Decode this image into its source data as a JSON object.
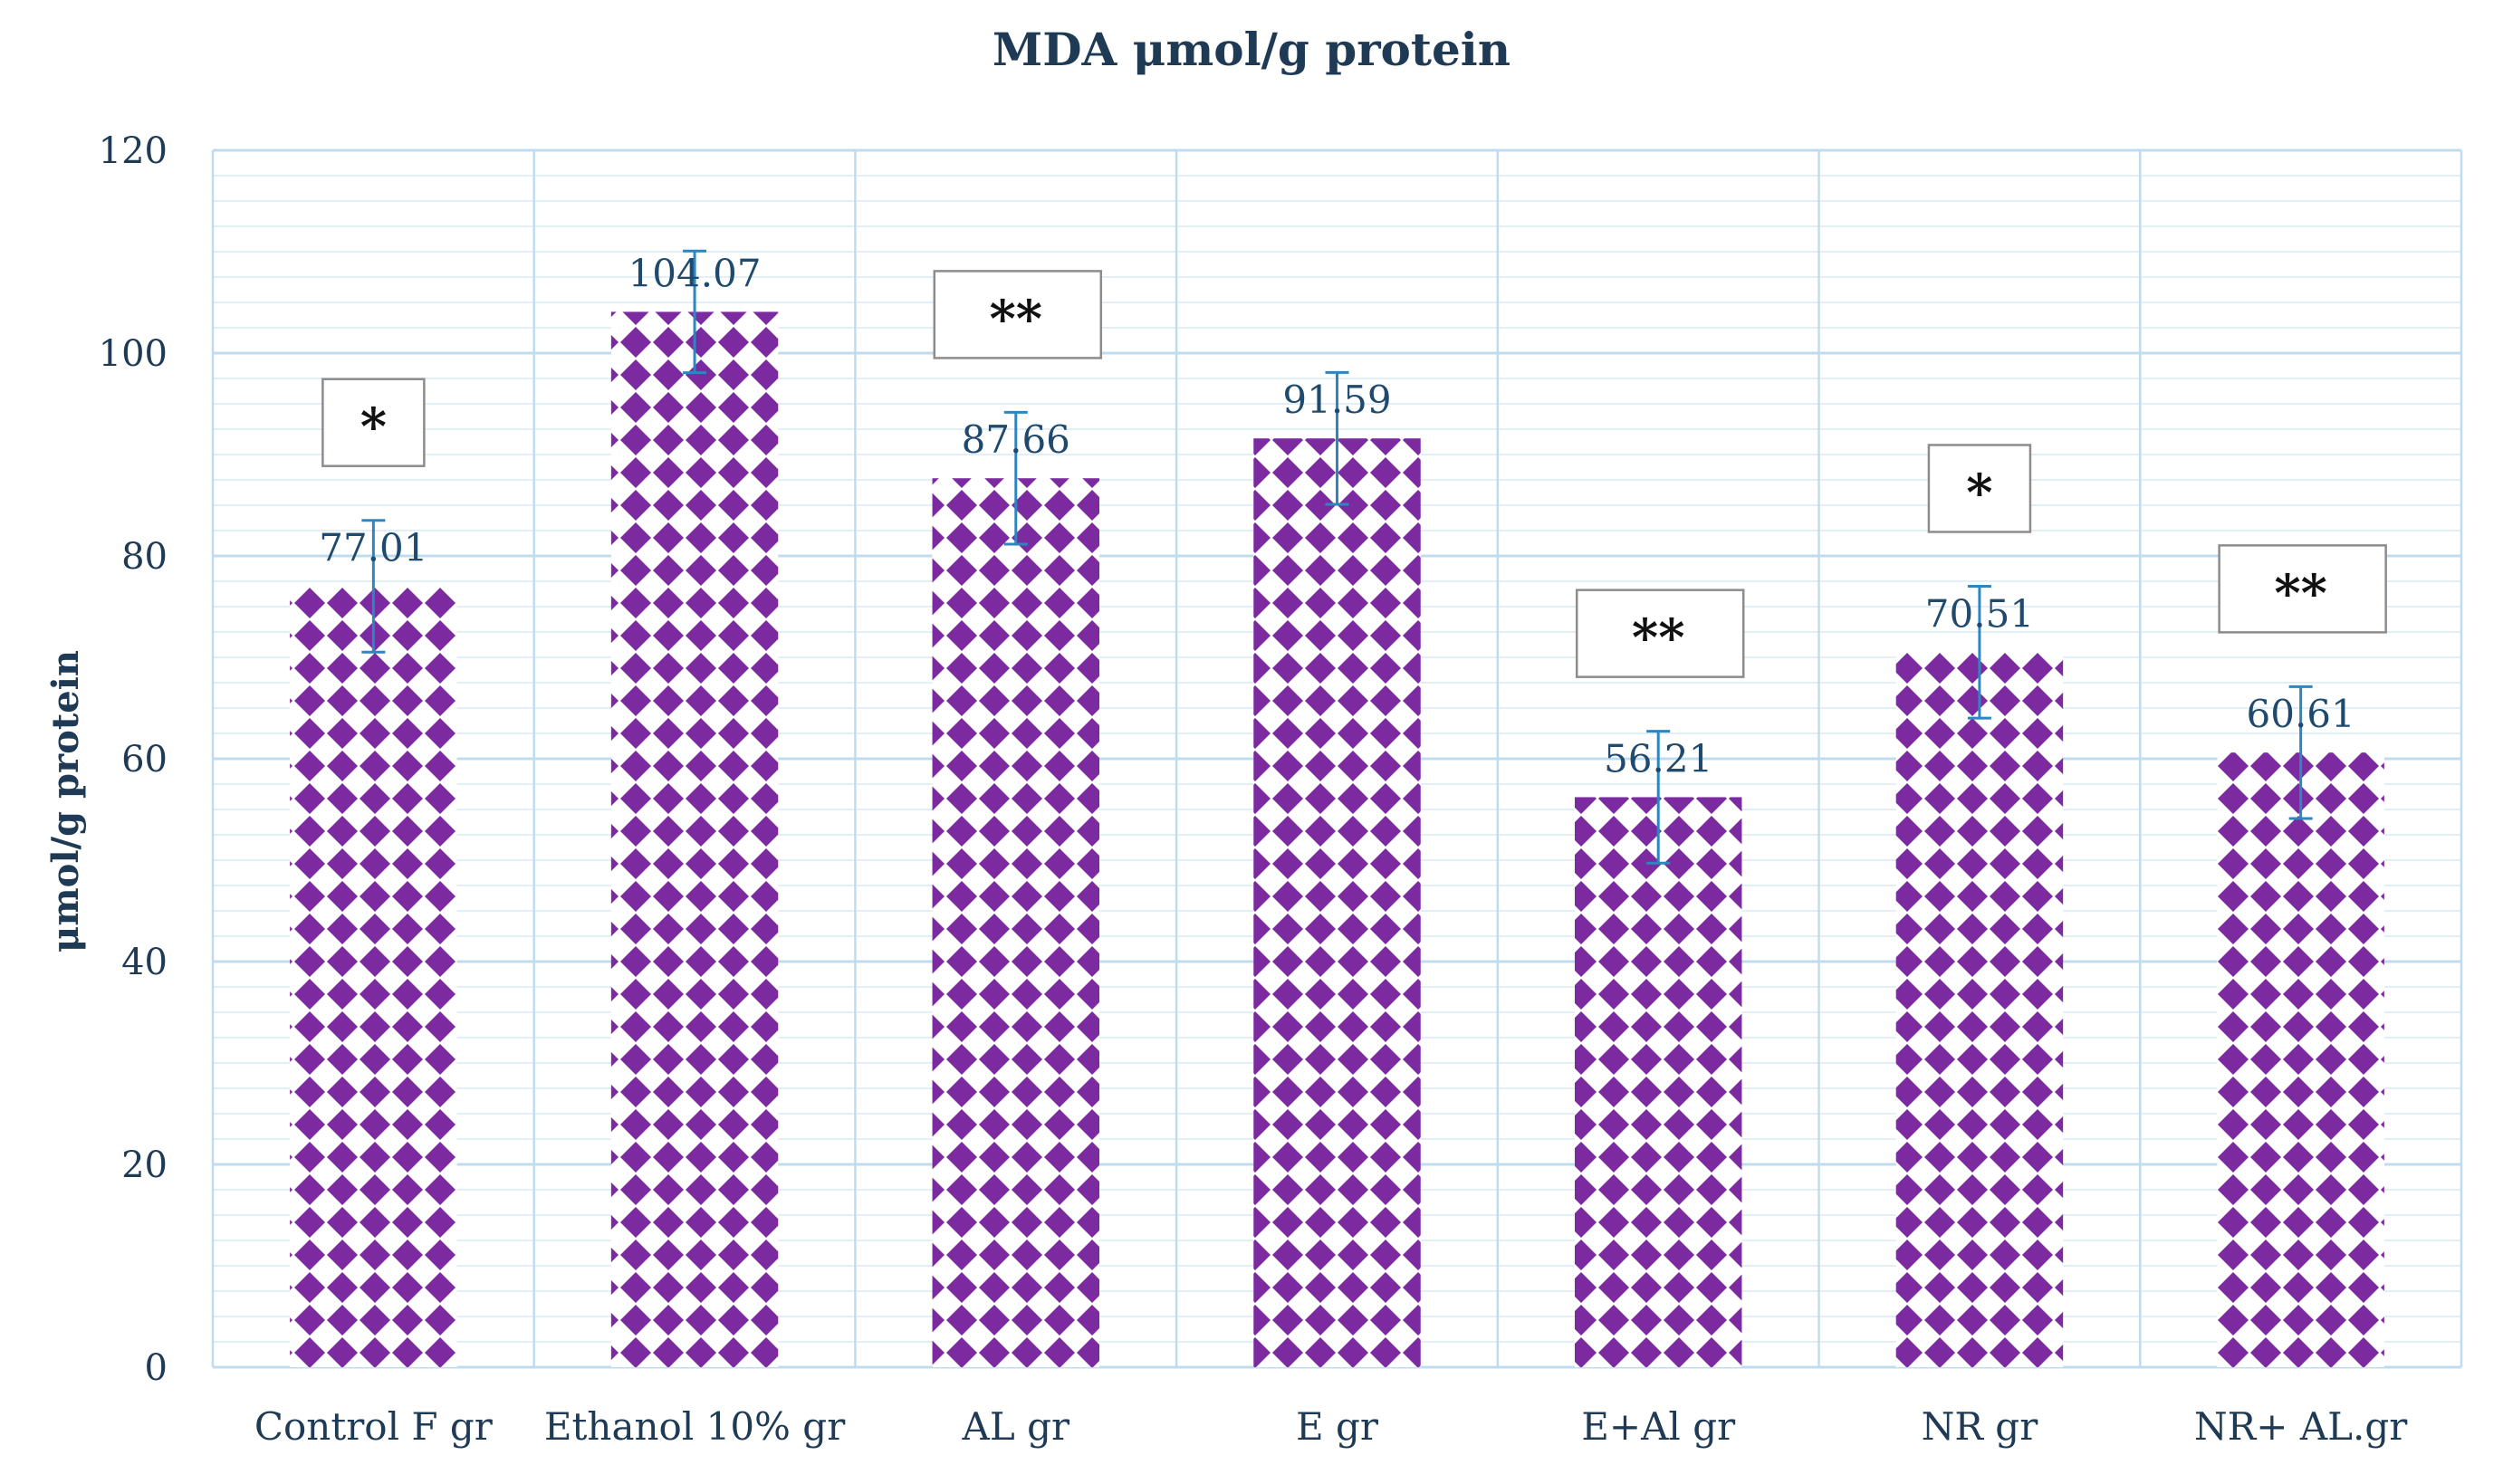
{
  "chart_data": {
    "type": "bar",
    "title": "MDA μmol/g protein",
    "xlabel": "",
    "ylabel": "μmol/g protein",
    "ylim": [
      0,
      120
    ],
    "ytick_step": 20,
    "minor_grid_step": 2.5,
    "grid": true,
    "legend": "none",
    "categories": [
      "Control F gr",
      "Ethanol 10% gr",
      "AL gr",
      "E gr",
      "E+Al gr",
      "NR gr",
      "NR+ AL.gr"
    ],
    "values": [
      77.01,
      104.07,
      87.66,
      91.59,
      56.21,
      70.51,
      60.61
    ],
    "data_labels": [
      "77.01",
      "104.07",
      "87.66",
      "91.59",
      "56.21",
      "70.51",
      "60.61"
    ],
    "error": [
      6.5,
      6.0,
      6.5,
      6.5,
      6.5,
      6.5,
      6.5
    ],
    "significance": [
      "*",
      "",
      "**",
      "",
      "**",
      "*",
      "**"
    ],
    "series": [
      {
        "name": "MDA",
        "values": [
          77.01,
          104.07,
          87.66,
          91.59,
          56.21,
          70.51,
          60.61
        ]
      }
    ],
    "colors": {
      "bar_fill": "#7b2aa0",
      "bar_background": "#ffffff",
      "error_bar": "#2e86c1",
      "grid_major": "#bfdcef",
      "grid_minor": "#e2eff8",
      "text": "#1f3a55",
      "box_border": "#8c8c8c"
    }
  }
}
